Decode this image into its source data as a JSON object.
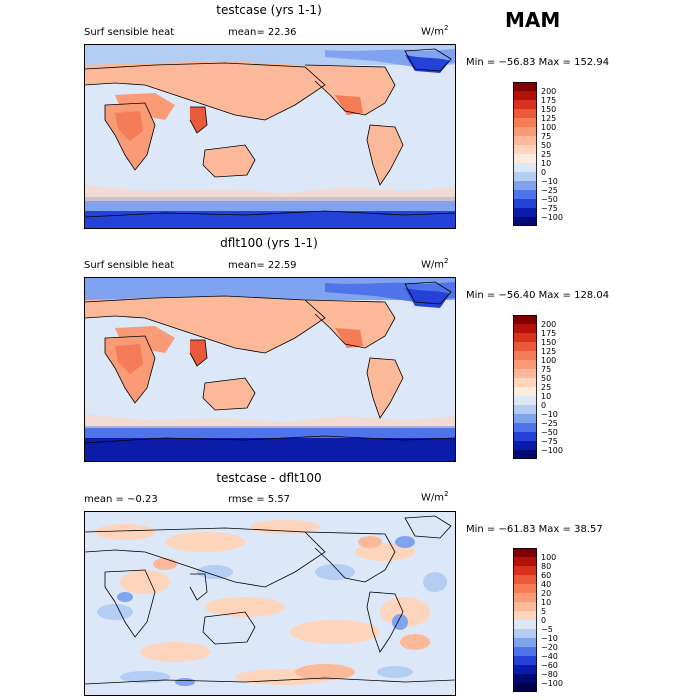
{
  "season": "MAM",
  "panels": [
    {
      "title": "testcase (yrs 1-1)",
      "left_label": "Surf sensible heat",
      "middle_label": "mean=  22.36",
      "units_base": "W/m",
      "units_exp": "2",
      "minmax": "Min = −56.83 Max = 152.94",
      "colorbar": {
        "labels": [
          "200",
          "175",
          "150",
          "125",
          "100",
          "75",
          "50",
          "25",
          "10",
          "0",
          "−10",
          "−25",
          "−50",
          "−75",
          "−100"
        ],
        "colors": [
          "#7f0000",
          "#b3120a",
          "#d8321e",
          "#ea5a3a",
          "#f47c57",
          "#f89b76",
          "#fbb999",
          "#fdd5bd",
          "#fdebdd",
          "#dce7f7",
          "#b4cdf2",
          "#7fa3ef",
          "#4f74ea",
          "#2442d8",
          "#0b1ca8",
          "#020a73"
        ]
      }
    },
    {
      "title": "dflt100 (yrs 1-1)",
      "left_label": "Surf sensible heat",
      "middle_label": "mean=  22.59",
      "units_base": "W/m",
      "units_exp": "2",
      "minmax": "Min = −56.40 Max = 128.04",
      "colorbar": {
        "labels": [
          "200",
          "175",
          "150",
          "125",
          "100",
          "75",
          "50",
          "25",
          "10",
          "0",
          "−10",
          "−25",
          "−50",
          "−75",
          "−100"
        ],
        "colors": [
          "#7f0000",
          "#b3120a",
          "#d8321e",
          "#ea5a3a",
          "#f47c57",
          "#f89b76",
          "#fbb999",
          "#fdd5bd",
          "#fdebdd",
          "#dce7f7",
          "#b4cdf2",
          "#7fa3ef",
          "#4f74ea",
          "#2442d8",
          "#0b1ca8",
          "#020a73"
        ]
      }
    },
    {
      "title": "testcase - dflt100",
      "left_label": "mean =   −0.23",
      "middle_label": "rmse =   5.57",
      "units_base": "W/m",
      "units_exp": "2",
      "minmax": "Min = −61.83 Max =  38.57",
      "colorbar": {
        "labels": [
          "100",
          "80",
          "60",
          "40",
          "20",
          "10",
          "5",
          "0",
          "−5",
          "−10",
          "−20",
          "−40",
          "−60",
          "−80",
          "−100"
        ],
        "colors": [
          "#7f0000",
          "#b3120a",
          "#d8321e",
          "#ea5a3a",
          "#f47c57",
          "#f89b76",
          "#fbb999",
          "#fdd5bd",
          "#dce7f7",
          "#b4cdf2",
          "#7fa3ef",
          "#4f74ea",
          "#2442d8",
          "#0b1ca8",
          "#020a73",
          "#00004d"
        ]
      }
    }
  ]
}
